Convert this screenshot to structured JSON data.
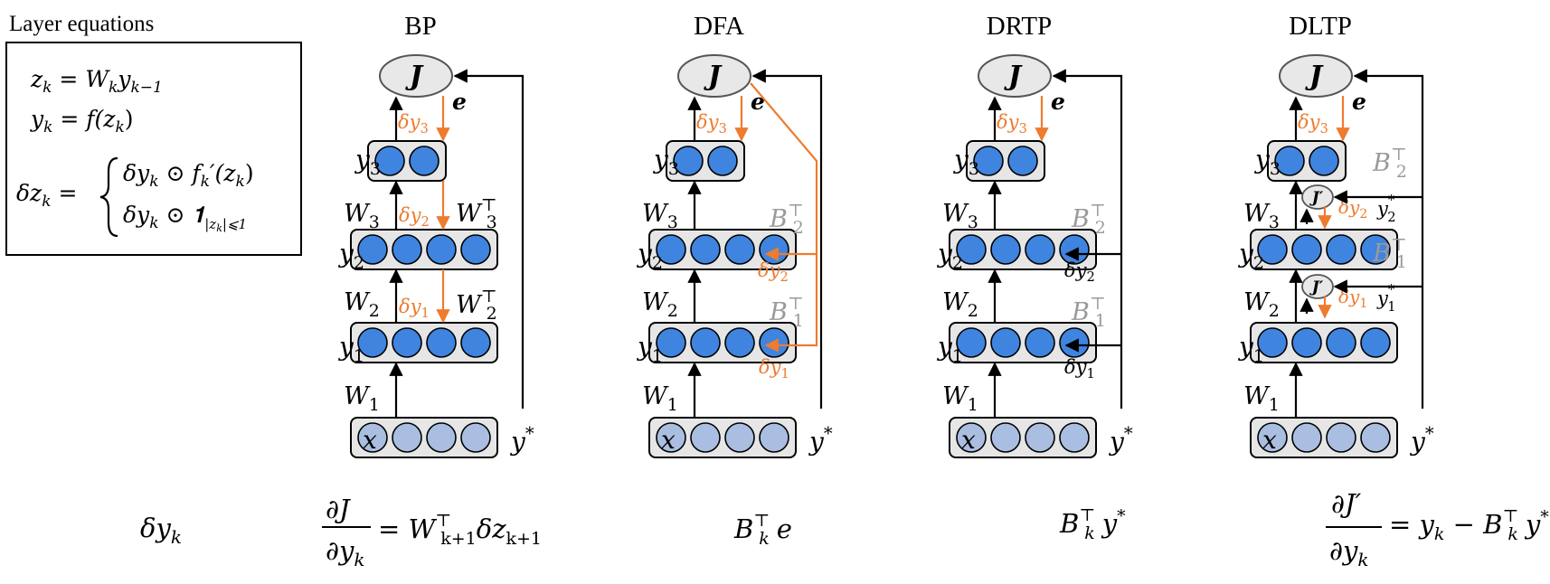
{
  "legend": {
    "title": "Layer equations",
    "eq1_lhs": "z",
    "eq1_lhs_sub": "k",
    "eq1_rhs": "W",
    "eq1_rhs_sub": "k",
    "eq1_rhs2": "y",
    "eq1_rhs2_sub": "k−1",
    "eq2_lhs": "y",
    "eq2_lhs_sub": "k",
    "eq2_rhs": "f(z",
    "eq2_rhs_sub": "k",
    "eq2_rhs_close": ")",
    "eq3_lhs": "δz",
    "eq3_lhs_sub": "k",
    "eq3_case1": "δy",
    "eq3_case1_sub": "k",
    "eq3_case1_rest": " ⊙ f",
    "eq3_case1_sub2": "k",
    "eq3_case1_end": "′(z",
    "eq3_case1_sub3": "k",
    "eq3_case1_close": ")",
    "eq3_case2": "δy",
    "eq3_case2_sub": "k",
    "eq3_case2_rest": " ⊙ 𝟏",
    "eq3_case2_sub2": "|z",
    "eq3_case2_sub3": "k",
    "eq3_case2_sub4": "|⩽1"
  },
  "panels": [
    {
      "title": "BP"
    },
    {
      "title": "DFA"
    },
    {
      "title": "DRTP"
    },
    {
      "title": "DLTP"
    }
  ],
  "symbols": {
    "J": "J",
    "Jp": "J′",
    "e": "e",
    "y": "y",
    "x": "x",
    "W": "W",
    "B": "B",
    "delta_y": "δy",
    "star": "*",
    "T": "⊤",
    "sub1": "1",
    "sub2": "2",
    "sub3": "3"
  },
  "bottom": {
    "label": "δy",
    "label_sub": "k",
    "bp_num": "∂J",
    "bp_den": "∂y",
    "bp_den_sub": "k",
    "bp_rhs": "= W",
    "bp_rhs_sup": "⊤",
    "bp_rhs_sub": "k+1",
    "bp_rhs2": "δz",
    "bp_rhs2_sub": "k+1",
    "dfa": "B",
    "dfa_sup": "⊤",
    "dfa_sub": "k",
    "dfa_rest": "e",
    "drtp": "B",
    "drtp_sup": "⊤",
    "drtp_sub": "k",
    "drtp_rest": "y",
    "drtp_star": "*",
    "dltp_num": "∂J′",
    "dltp_den": "∂y",
    "dltp_den_sub": "k",
    "dltp_rhs": "= y",
    "dltp_rhs_sub": "k",
    "dltp_rhs2": " − B",
    "dltp_rhs2_sup": "⊤",
    "dltp_rhs2_sub": "k",
    "dltp_rhs3": "y",
    "dltp_rhs3_star": "*"
  },
  "colors": {
    "orange": "#EE7B2E",
    "gray": "#9A9A9A",
    "neuron": "#3F84DF",
    "neuron_in": "#A9BEE0",
    "layer_bg": "#E6E6E6"
  }
}
